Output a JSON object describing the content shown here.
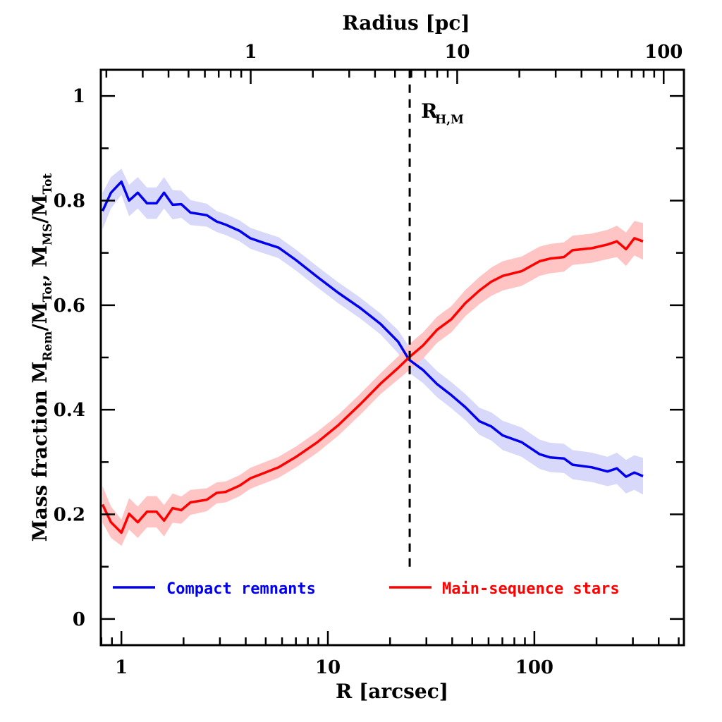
{
  "chart_data": {
    "type": "line",
    "title": "",
    "xlabel": "R [arcsec]",
    "xlabel_top": "Radius [pc]",
    "ylabel_parts": [
      "Mass fraction  M",
      "Rem",
      "/M",
      "Tot",
      ",  M",
      "MS",
      "/M",
      "Tot"
    ],
    "ylabel": "Mass fraction  M_Rem/M_Tot,  M_MS/M_Tot",
    "xscale": "log",
    "xlim": [
      0.795,
      530
    ],
    "ylim": [
      -0.05,
      1.05
    ],
    "x_ticks": [
      {
        "value": 1,
        "label": "1"
      },
      {
        "value": 10,
        "label": "10"
      },
      {
        "value": 100,
        "label": "100"
      }
    ],
    "x_top_ticks_pc": [
      {
        "value": 1,
        "label": "1"
      },
      {
        "value": 10,
        "label": "10"
      },
      {
        "value": 100,
        "label": "100"
      }
    ],
    "pc_per_arcsec": 0.2365,
    "y_ticks": [
      {
        "value": 0,
        "label": "0"
      },
      {
        "value": 0.2,
        "label": "0.2"
      },
      {
        "value": 0.4,
        "label": "0.4"
      },
      {
        "value": 0.6,
        "label": "0.6"
      },
      {
        "value": 0.8,
        "label": "0.8"
      },
      {
        "value": 1,
        "label": "1"
      }
    ],
    "grid": false,
    "legend_position": "bottom",
    "x": [
      0.81,
      0.89,
      1.0,
      1.09,
      1.2,
      1.33,
      1.48,
      1.61,
      1.77,
      1.95,
      2.16,
      2.59,
      2.89,
      3.2,
      3.74,
      4.21,
      4.82,
      5.77,
      7.02,
      8.89,
      11.2,
      14.3,
      18.0,
      21.9,
      24.7,
      28.9,
      33.8,
      39.6,
      46.3,
      54.2,
      61.9,
      70.2,
      86.8,
      106,
      119,
      139,
      153,
      190,
      226,
      251,
      278,
      305,
      336
    ],
    "series": [
      {
        "name": "Compact remnants",
        "color": "#0000ee",
        "band_color": "#d8d8fa",
        "values": [
          0.78,
          0.815,
          0.836,
          0.8,
          0.815,
          0.795,
          0.795,
          0.815,
          0.792,
          0.793,
          0.777,
          0.772,
          0.76,
          0.754,
          0.742,
          0.728,
          0.72,
          0.71,
          0.686,
          0.654,
          0.624,
          0.595,
          0.564,
          0.53,
          0.496,
          0.476,
          0.449,
          0.428,
          0.405,
          0.378,
          0.368,
          0.351,
          0.338,
          0.315,
          0.309,
          0.307,
          0.295,
          0.29,
          0.282,
          0.288,
          0.272,
          0.28,
          0.273
        ],
        "band_halfwidth": [
          0.035,
          0.03,
          0.025,
          0.03,
          0.03,
          0.03,
          0.03,
          0.03,
          0.028,
          0.026,
          0.024,
          0.022,
          0.02,
          0.02,
          0.02,
          0.02,
          0.02,
          0.02,
          0.02,
          0.02,
          0.02,
          0.02,
          0.02,
          0.022,
          0.025,
          0.025,
          0.025,
          0.025,
          0.025,
          0.026,
          0.027,
          0.028,
          0.028,
          0.028,
          0.028,
          0.028,
          0.028,
          0.028,
          0.028,
          0.03,
          0.032,
          0.033,
          0.035
        ]
      },
      {
        "name": "Main-sequence stars",
        "color": "#ff0000",
        "band_color": "#ffc4c4",
        "values": [
          0.219,
          0.185,
          0.165,
          0.201,
          0.185,
          0.205,
          0.205,
          0.188,
          0.212,
          0.208,
          0.223,
          0.228,
          0.241,
          0.243,
          0.255,
          0.269,
          0.278,
          0.29,
          0.31,
          0.338,
          0.37,
          0.41,
          0.45,
          0.48,
          0.5,
          0.523,
          0.553,
          0.573,
          0.604,
          0.628,
          0.645,
          0.656,
          0.665,
          0.684,
          0.689,
          0.692,
          0.705,
          0.709,
          0.716,
          0.722,
          0.707,
          0.728,
          0.722
        ],
        "band_halfwidth": [
          0.035,
          0.03,
          0.025,
          0.03,
          0.03,
          0.03,
          0.03,
          0.03,
          0.028,
          0.026,
          0.024,
          0.022,
          0.02,
          0.02,
          0.02,
          0.02,
          0.02,
          0.02,
          0.02,
          0.02,
          0.02,
          0.02,
          0.02,
          0.022,
          0.025,
          0.025,
          0.025,
          0.025,
          0.025,
          0.026,
          0.027,
          0.028,
          0.028,
          0.028,
          0.028,
          0.028,
          0.028,
          0.028,
          0.028,
          0.03,
          0.032,
          0.033,
          0.035
        ]
      }
    ],
    "annotations": [
      {
        "type": "vline",
        "x": 24.9,
        "style": "dashed",
        "y_from": 0.1,
        "y_to": 1.05,
        "color": "#000000"
      },
      {
        "type": "text",
        "label_main": "R",
        "label_sub": "H,M",
        "x": 24.9,
        "y": 0.98
      }
    ]
  }
}
